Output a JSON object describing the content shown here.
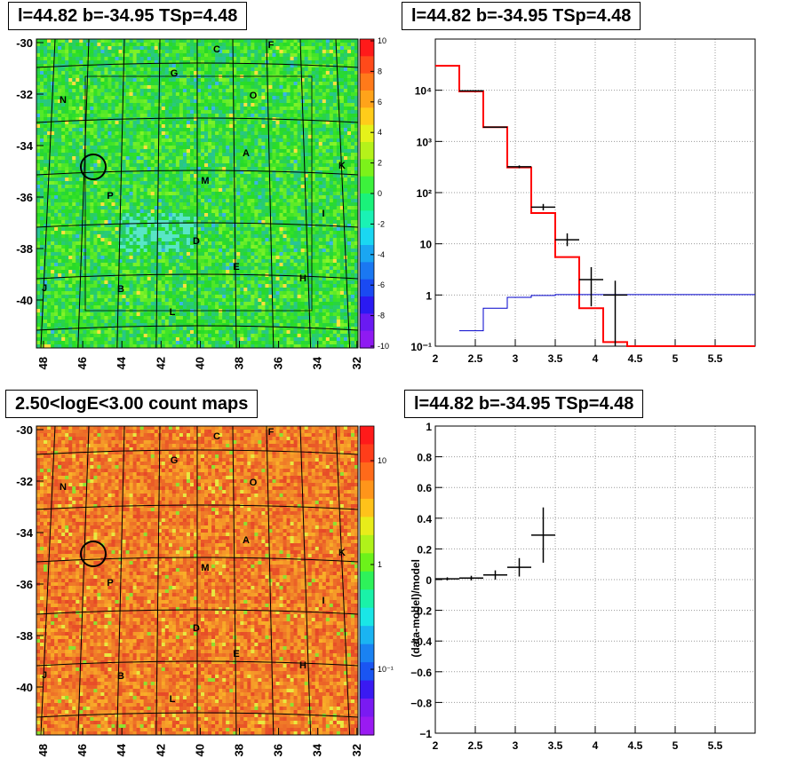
{
  "panels": {
    "tl_title": "l=44.82 b=-34.95 TSp=4.48",
    "tr_title": "l=44.82 b=-34.95 TSp=4.48",
    "bl_title": "2.50<logE<3.00 count maps",
    "br_title": "l=44.82 b=-34.95 TSp=4.48"
  },
  "maps": {
    "x_ticks": [
      "48",
      "46",
      "44",
      "42",
      "40",
      "38",
      "36",
      "34",
      "32"
    ],
    "y_ticks": [
      "-30",
      "-32",
      "-34",
      "-36",
      "-38",
      "-40"
    ],
    "source_labels": [
      "C",
      "F",
      "G",
      "O",
      "N",
      "A",
      "K",
      "M",
      "P",
      "I",
      "D",
      "E",
      "H",
      "J",
      "B",
      "L"
    ],
    "top_colorbar": {
      "ticks": [
        "10",
        "8",
        "6",
        "4",
        "2",
        "0",
        "-2",
        "-4",
        "-6",
        "-8",
        "-10"
      ],
      "range": [
        -10,
        10
      ],
      "scale": "linear"
    },
    "bottom_colorbar": {
      "ticks": [
        "10",
        "1",
        "10⁻¹"
      ],
      "scale": "log"
    }
  },
  "chart_data": [
    {
      "type": "line",
      "title": "l=44.82 b=-34.95 TSp=4.48",
      "xlabel": "",
      "ylabel": "",
      "xlim": [
        2,
        6
      ],
      "ylim": [
        0.1,
        100000
      ],
      "yscale": "log",
      "grid": true,
      "x_ticks": [
        "2",
        "2.5",
        "3",
        "3.5",
        "4",
        "4.5",
        "5",
        "5.5"
      ],
      "y_ticks": [
        "10⁻¹",
        "1",
        "10",
        "10²",
        "10³",
        "10⁴"
      ],
      "series": [
        {
          "style": "step",
          "color": "#ff0000",
          "edges": [
            2,
            2.3,
            2.6,
            2.9,
            3.2,
            3.5,
            3.8,
            4.1,
            4.4,
            6
          ],
          "values": [
            30000,
            9500,
            1900,
            310,
            40,
            5.5,
            0.55,
            0.12,
            0.1
          ]
        },
        {
          "style": "step",
          "color": "#0000cc",
          "edges": [
            2.3,
            2.6,
            2.9,
            3.2,
            3.5,
            6
          ],
          "values": [
            0.2,
            0.55,
            0.9,
            0.98,
            1.02
          ]
        },
        {
          "style": "errorbars",
          "color": "#000000",
          "points": [
            {
              "x": 2.45,
              "xerr": 0.15,
              "y": 9700,
              "ylo": 9500,
              "yhi": 9900
            },
            {
              "x": 2.75,
              "xerr": 0.15,
              "y": 1900,
              "ylo": 1850,
              "yhi": 1950
            },
            {
              "x": 3.05,
              "xerr": 0.15,
              "y": 320,
              "ylo": 300,
              "yhi": 340
            },
            {
              "x": 3.35,
              "xerr": 0.15,
              "y": 52,
              "ylo": 45,
              "yhi": 60
            },
            {
              "x": 3.65,
              "xerr": 0.15,
              "y": 12,
              "ylo": 9,
              "yhi": 16
            },
            {
              "x": 3.95,
              "xerr": 0.15,
              "y": 2,
              "ylo": 0.6,
              "yhi": 3.5
            },
            {
              "x": 4.25,
              "xerr": 0.15,
              "y": 1,
              "ylo": 0.1,
              "yhi": 1.9
            }
          ]
        }
      ]
    },
    {
      "type": "scatter",
      "title": "l=44.82 b=-34.95 TSp=4.48",
      "xlabel": "",
      "ylabel": "(data-model)/model",
      "xlim": [
        2,
        6
      ],
      "ylim": [
        -1,
        1
      ],
      "grid": true,
      "x_ticks": [
        "2",
        "2.5",
        "3",
        "3.5",
        "4",
        "4.5",
        "5",
        "5.5"
      ],
      "y_ticks": [
        "1",
        "0.8",
        "0.6",
        "0.4",
        "0.2",
        "0",
        "−0.2",
        "−0.4",
        "−0.6",
        "−0.8",
        "−1"
      ],
      "series": [
        {
          "style": "errorbars",
          "color": "#000000",
          "points": [
            {
              "x": 2.15,
              "xerr": 0.15,
              "y": 0.005,
              "yerr": 0.01
            },
            {
              "x": 2.45,
              "xerr": 0.15,
              "y": 0.01,
              "yerr": 0.015
            },
            {
              "x": 2.75,
              "xerr": 0.15,
              "y": 0.03,
              "yerr": 0.03
            },
            {
              "x": 3.05,
              "xerr": 0.15,
              "y": 0.08,
              "yerr": 0.06
            },
            {
              "x": 3.35,
              "xerr": 0.15,
              "y": 0.29,
              "yerr": 0.18
            }
          ]
        }
      ]
    }
  ]
}
